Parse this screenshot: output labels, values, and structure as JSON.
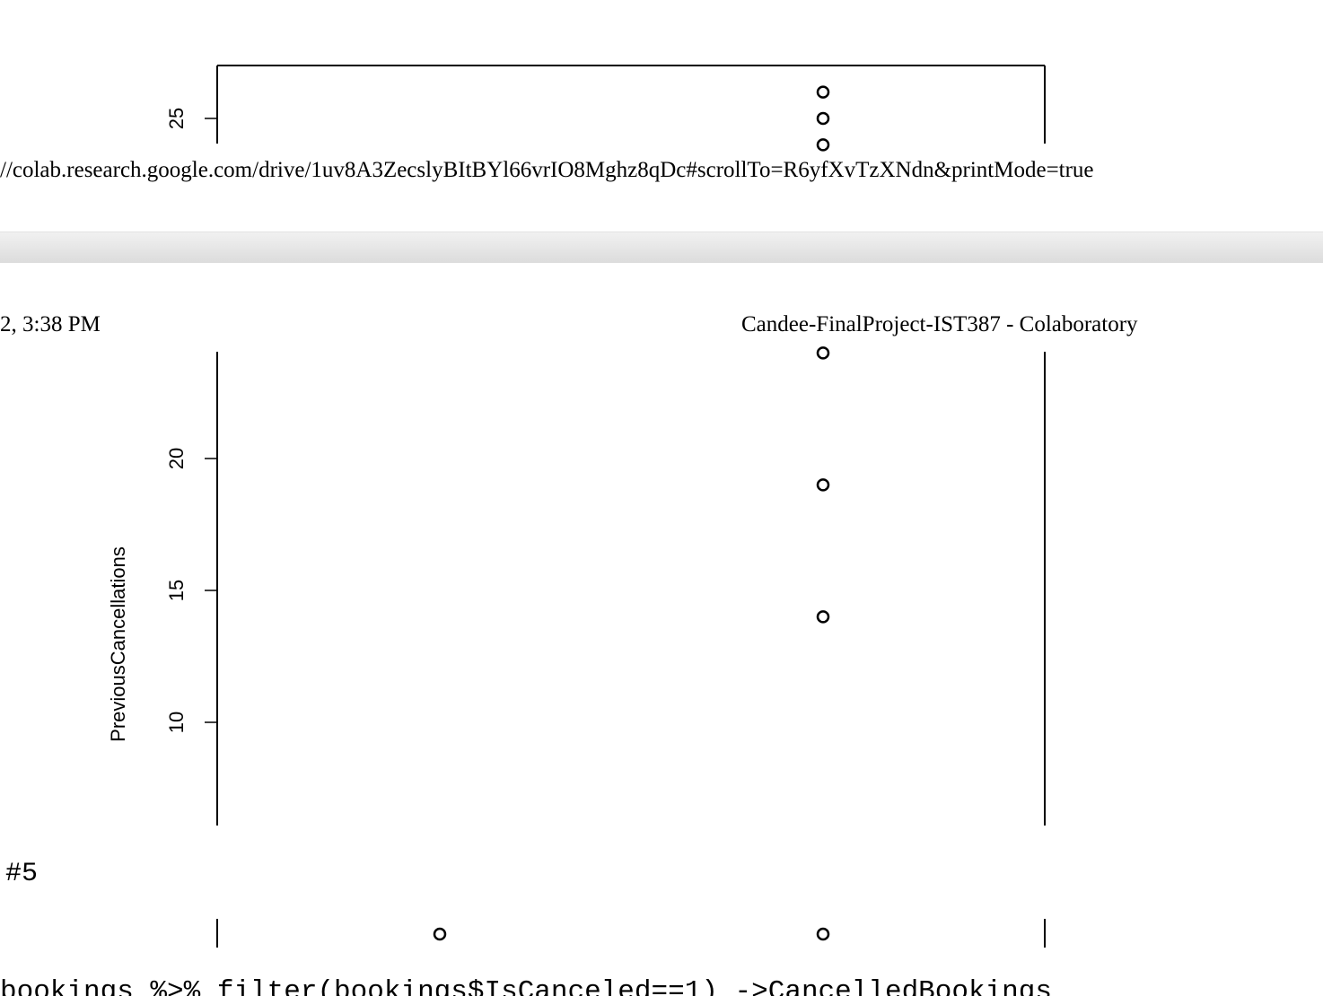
{
  "browser": {
    "url_text": "//colab.research.google.com/drive/1uv8A3ZecslyBItBYl66vrIO8Mghz8qDc#scrollTo=R6yfXvTzXNdn&printMode=true",
    "print_header_left": "2, 3:38 PM",
    "print_header_right": "Candee-FinalProject-IST387 - Colaboratory"
  },
  "notebook": {
    "cell_comment": "#5",
    "code_line": "bookings %>% filter(bookings$IsCanceled==1) ->CancelledBookings"
  },
  "chart_data": [
    {
      "type": "scatter",
      "title": "",
      "xlabel": "",
      "ylabel": "",
      "yticks": [
        "25"
      ],
      "points": [
        {
          "x": 2,
          "y": 26
        },
        {
          "x": 2,
          "y": 25
        },
        {
          "x": 2,
          "y": 24
        }
      ]
    },
    {
      "type": "scatter",
      "title": "",
      "xlabel": "",
      "ylabel": "PreviousCancellations",
      "yticks": [
        "10",
        "15",
        "20"
      ],
      "points": [
        {
          "x": 2,
          "y": 24
        },
        {
          "x": 2,
          "y": 19
        },
        {
          "x": 2,
          "y": 14
        }
      ]
    },
    {
      "type": "scatter",
      "title": "",
      "xlabel": "",
      "ylabel": "",
      "yticks": [],
      "points": [
        {
          "x": 1,
          "y": 0
        },
        {
          "x": 2,
          "y": 0
        }
      ]
    }
  ]
}
